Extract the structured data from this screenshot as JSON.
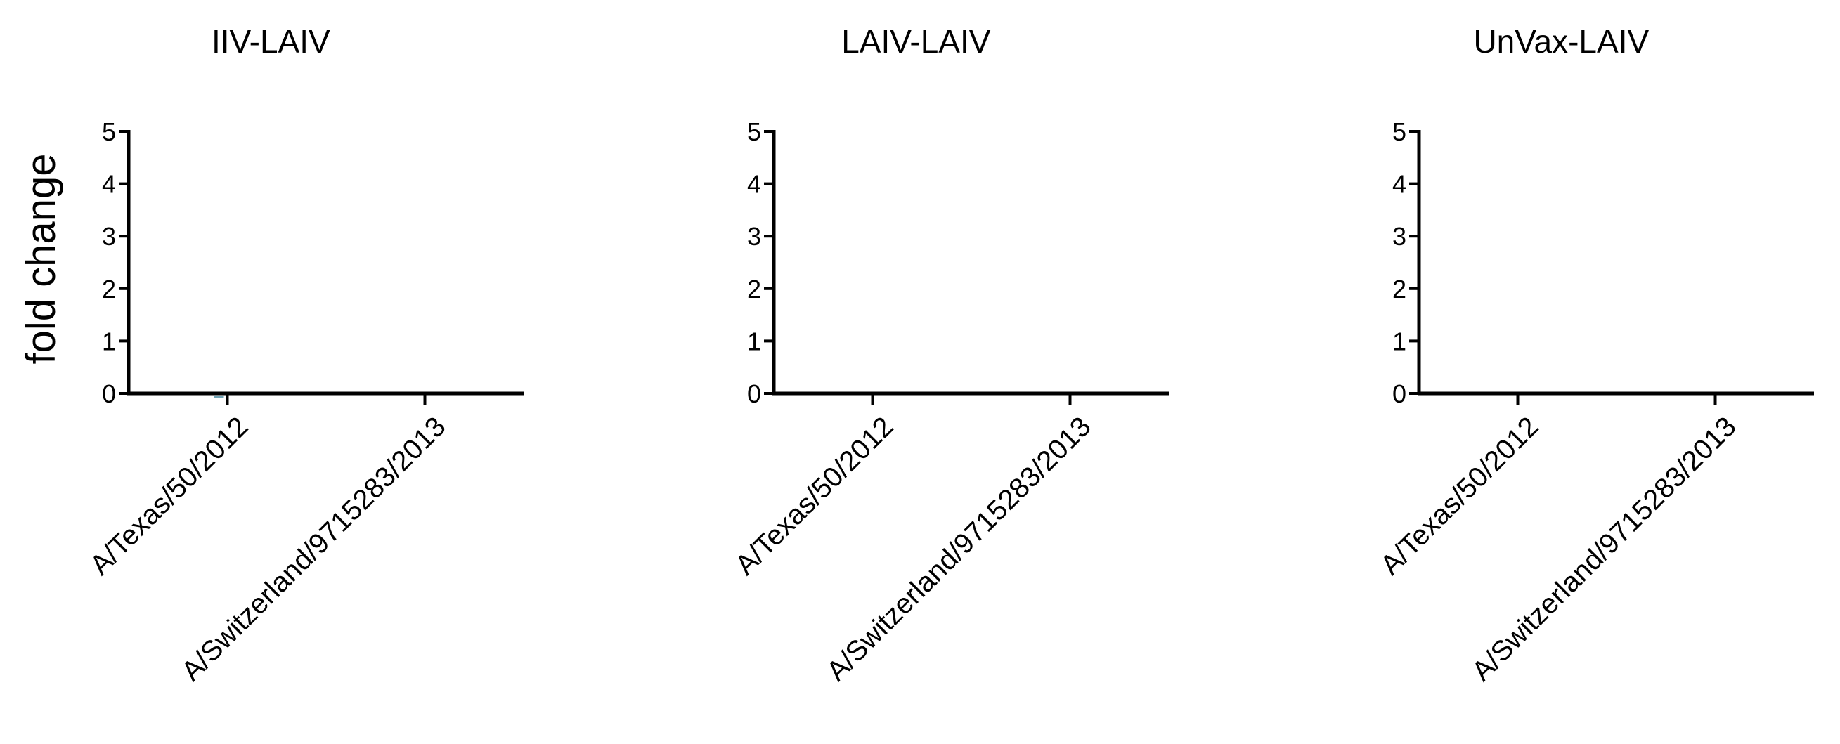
{
  "chart_data": [
    {
      "type": "scatter",
      "title": "IIV-LAIV",
      "ylabel": "fold change",
      "xlabel": "",
      "categories": [
        "A/Texas/50/2012",
        "A/Switzerland/9715283/2013"
      ],
      "yticks": [
        0,
        1,
        2,
        3,
        4,
        5
      ],
      "ylim": [
        0,
        5
      ],
      "grid": false,
      "series": [
        {
          "values": [
            0.2,
            null
          ],
          "color": "#6fa3b5"
        }
      ]
    },
    {
      "type": "scatter",
      "title": "LAIV-LAIV",
      "ylabel": "",
      "xlabel": "",
      "categories": [
        "A/Texas/50/2012",
        "A/Switzerland/9715283/2013"
      ],
      "yticks": [
        0,
        1,
        2,
        3,
        4,
        5
      ],
      "ylim": [
        0,
        5
      ],
      "grid": false,
      "series": [
        {
          "values": [
            null,
            null
          ],
          "color": "#6fa3b5"
        }
      ]
    },
    {
      "type": "scatter",
      "title": "UnVax-LAIV",
      "ylabel": "",
      "xlabel": "",
      "categories": [
        "A/Texas/50/2012",
        "A/Switzerland/9715283/2013"
      ],
      "yticks": [
        0,
        1,
        2,
        3,
        4,
        5
      ],
      "ylim": [
        0,
        5
      ],
      "grid": false,
      "series": [
        {
          "values": [
            null,
            null
          ],
          "color": "#6fa3b5"
        }
      ]
    }
  ]
}
